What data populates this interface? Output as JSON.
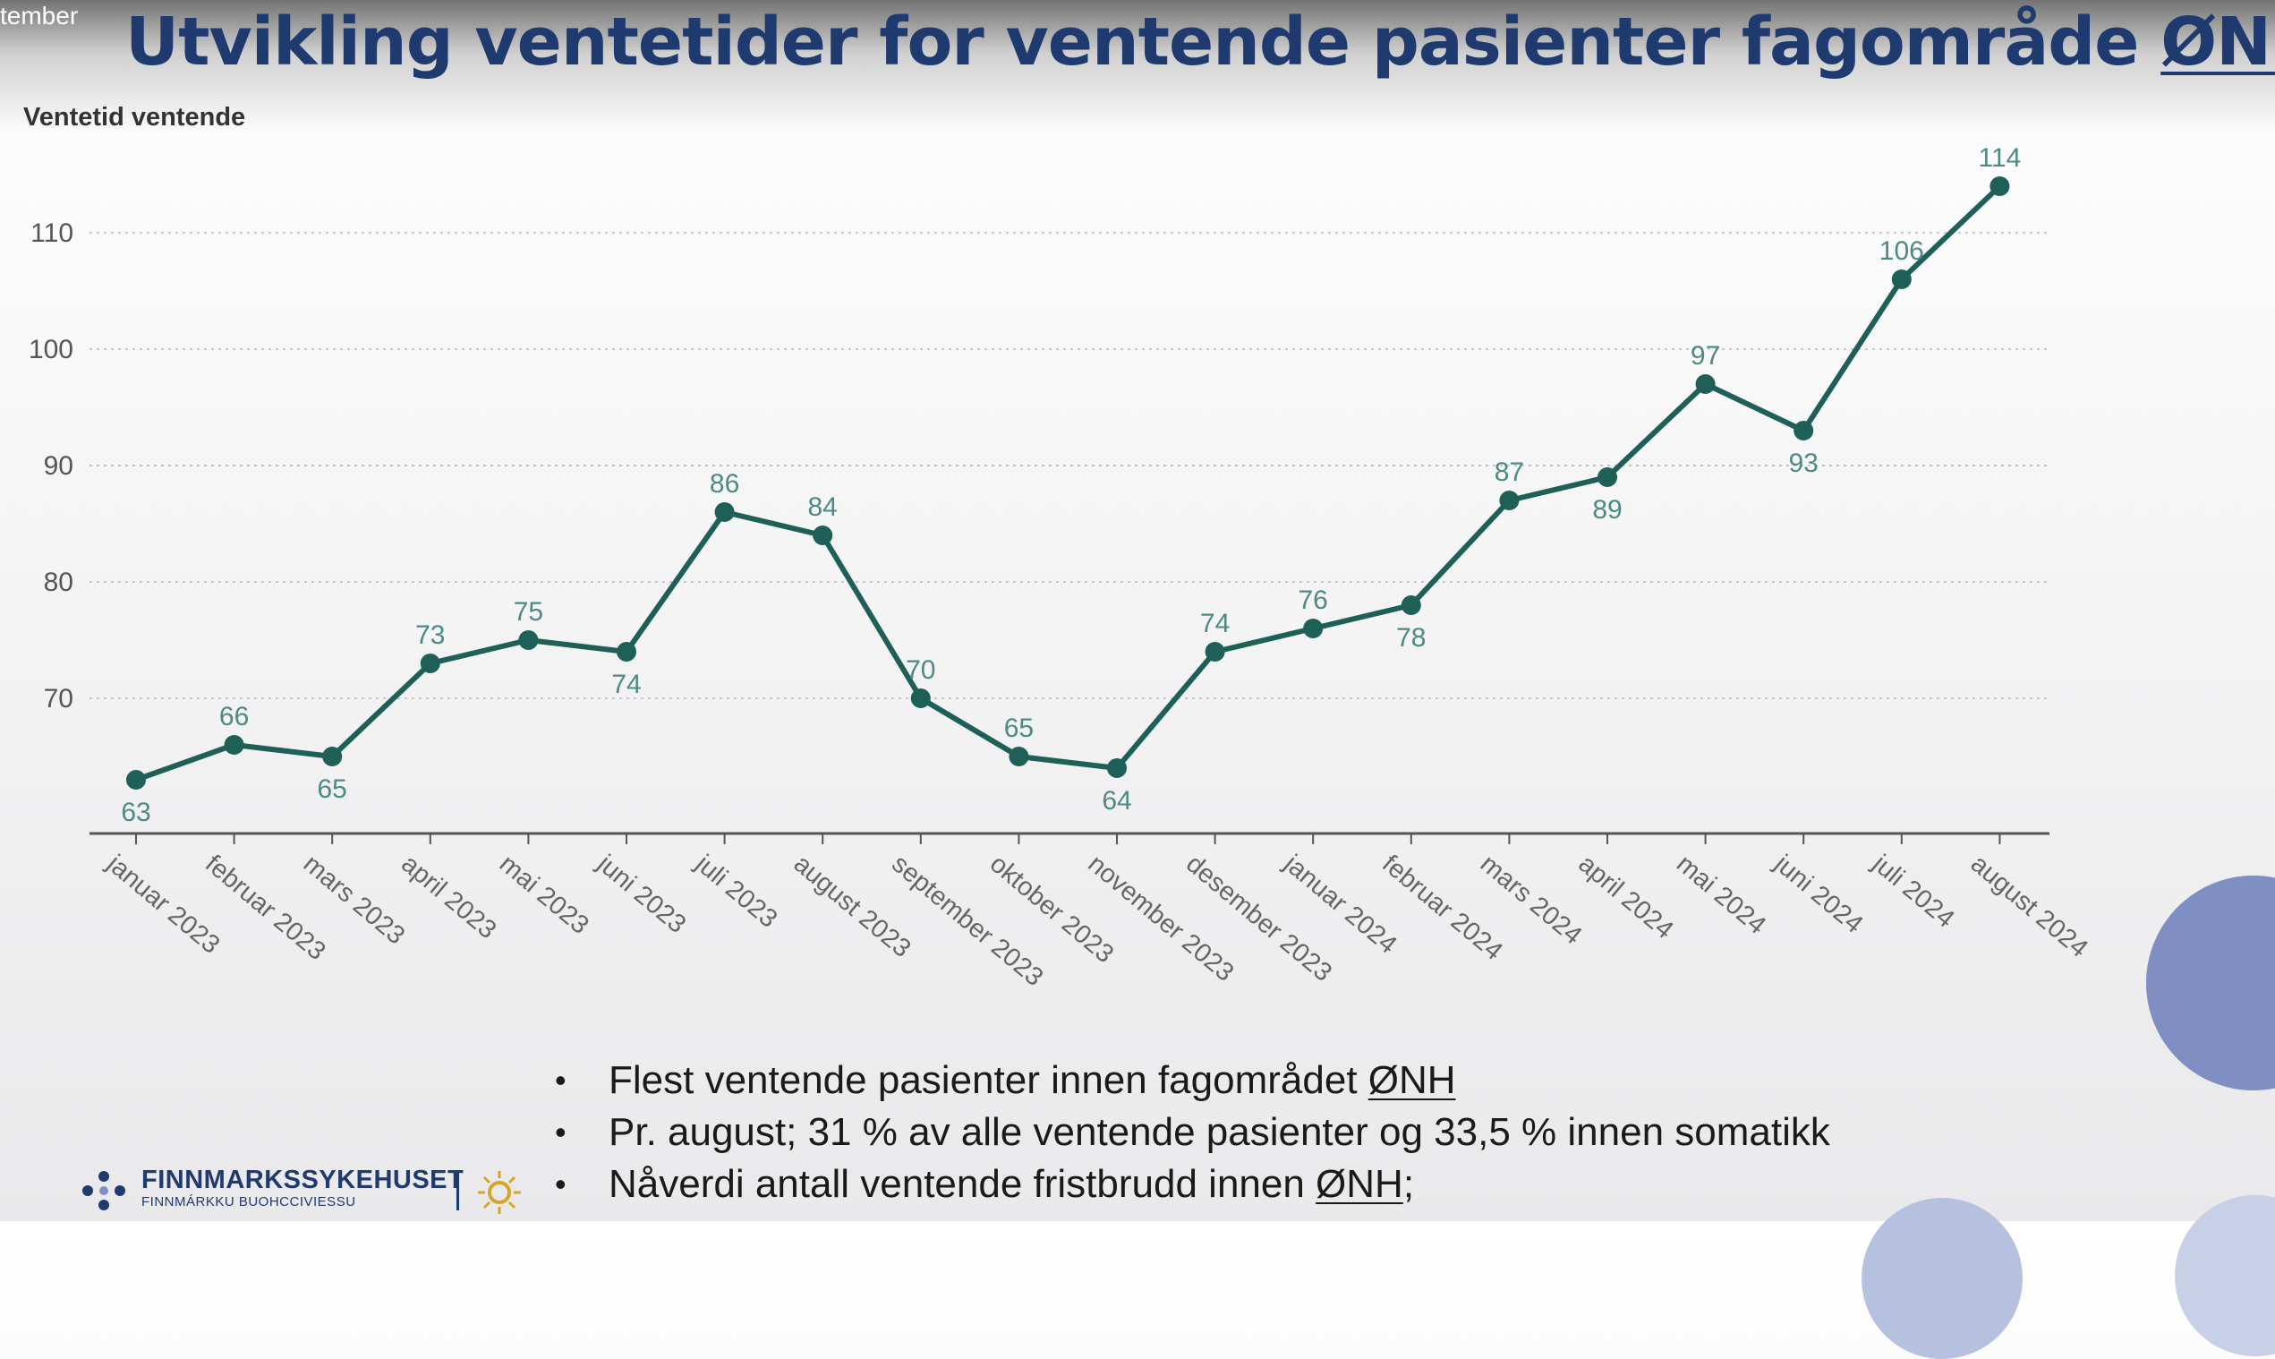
{
  "overlay_text": "tember",
  "title": {
    "prefix": "Utvikling ventetider for ventende pasienter fagområde ",
    "underlined": "ØNH"
  },
  "chart_data": {
    "type": "line",
    "title": "Ventetid ventende",
    "categories": [
      "januar 2023",
      "februar 2023",
      "mars 2023",
      "april 2023",
      "mai 2023",
      "juni 2023",
      "juli 2023",
      "august 2023",
      "september 2023",
      "oktober 2023",
      "november 2023",
      "desember 2023",
      "januar 2024",
      "februar 2024",
      "mars 2024",
      "april 2024",
      "mai 2024",
      "juni 2024",
      "juli 2024",
      "august 2024"
    ],
    "values": [
      63,
      66,
      65,
      73,
      75,
      74,
      86,
      84,
      70,
      65,
      64,
      74,
      76,
      78,
      87,
      89,
      97,
      93,
      106,
      114
    ],
    "data_labels": [
      "63",
      "66",
      "65",
      "73",
      "75",
      "74",
      "86",
      "84",
      "70",
      "65",
      "64",
      "74",
      "76",
      "78",
      "87",
      "89",
      "97",
      "93",
      "106",
      "114"
    ],
    "label_position": [
      "below",
      "above",
      "below",
      "above",
      "above",
      "below",
      "above",
      "above",
      "above",
      "above",
      "below",
      "above",
      "above",
      "below",
      "above",
      "below",
      "above",
      "below",
      "above",
      "above"
    ],
    "yticks": [
      70,
      80,
      90,
      100,
      110
    ],
    "ylim": [
      57,
      118
    ],
    "grid": true,
    "line_color": "#1e5f57",
    "label_color": "#4d8a82"
  },
  "bullets": [
    {
      "text": "Flest ventende pasienter innen fagområdet ",
      "underlined": "ØNH",
      "after": ""
    },
    {
      "text": "Pr. august; 31 % av alle ventende pasienter og 33,5 % innen somatikk",
      "underlined": "",
      "after": ""
    },
    {
      "text": "Nåverdi antall ventende fristbrudd innen ",
      "underlined": "ØNH",
      "after": ";"
    }
  ],
  "logo": {
    "name": "FINNMARKSSYKEHUSET",
    "subtitle": "FINNMÁRKKU BUOHCCIVIESSU",
    "icon": "sun-icon"
  },
  "colors": {
    "title": "#1f3a6e",
    "axis": "#555555",
    "grid": "#c8c8c8",
    "deco": "#7f8fc4"
  }
}
